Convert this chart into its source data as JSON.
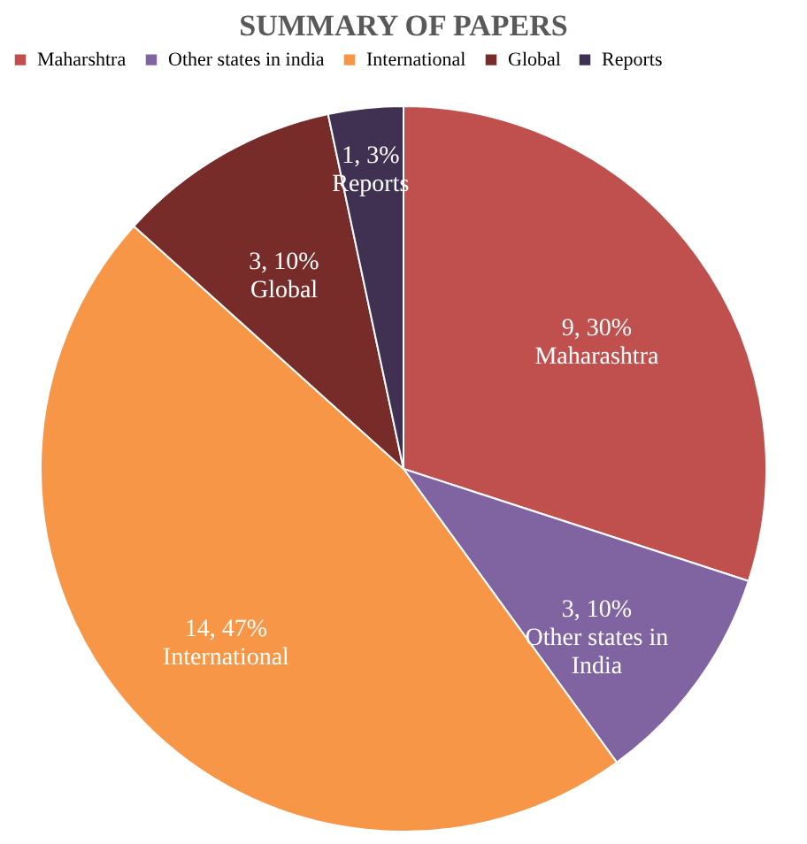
{
  "chart_data": {
    "type": "pie",
    "title": "SUMMARY OF PAPERS",
    "categories": [
      "Maharshtra",
      "Other states in india",
      "International",
      "Global",
      "Reports"
    ],
    "values": [
      9,
      3,
      14,
      3,
      1
    ],
    "colors": [
      "#c0504d",
      "#8064a2",
      "#f79646",
      "#772c2a",
      "#403152"
    ],
    "value_labels": [
      "9, 30%",
      "3, 10%",
      "14, 47%",
      "3, 10%",
      "1, 3%"
    ],
    "annotations": [
      "Maharashtra",
      "Other states in India",
      "International",
      "Global",
      "Reports"
    ],
    "legend": "top"
  }
}
